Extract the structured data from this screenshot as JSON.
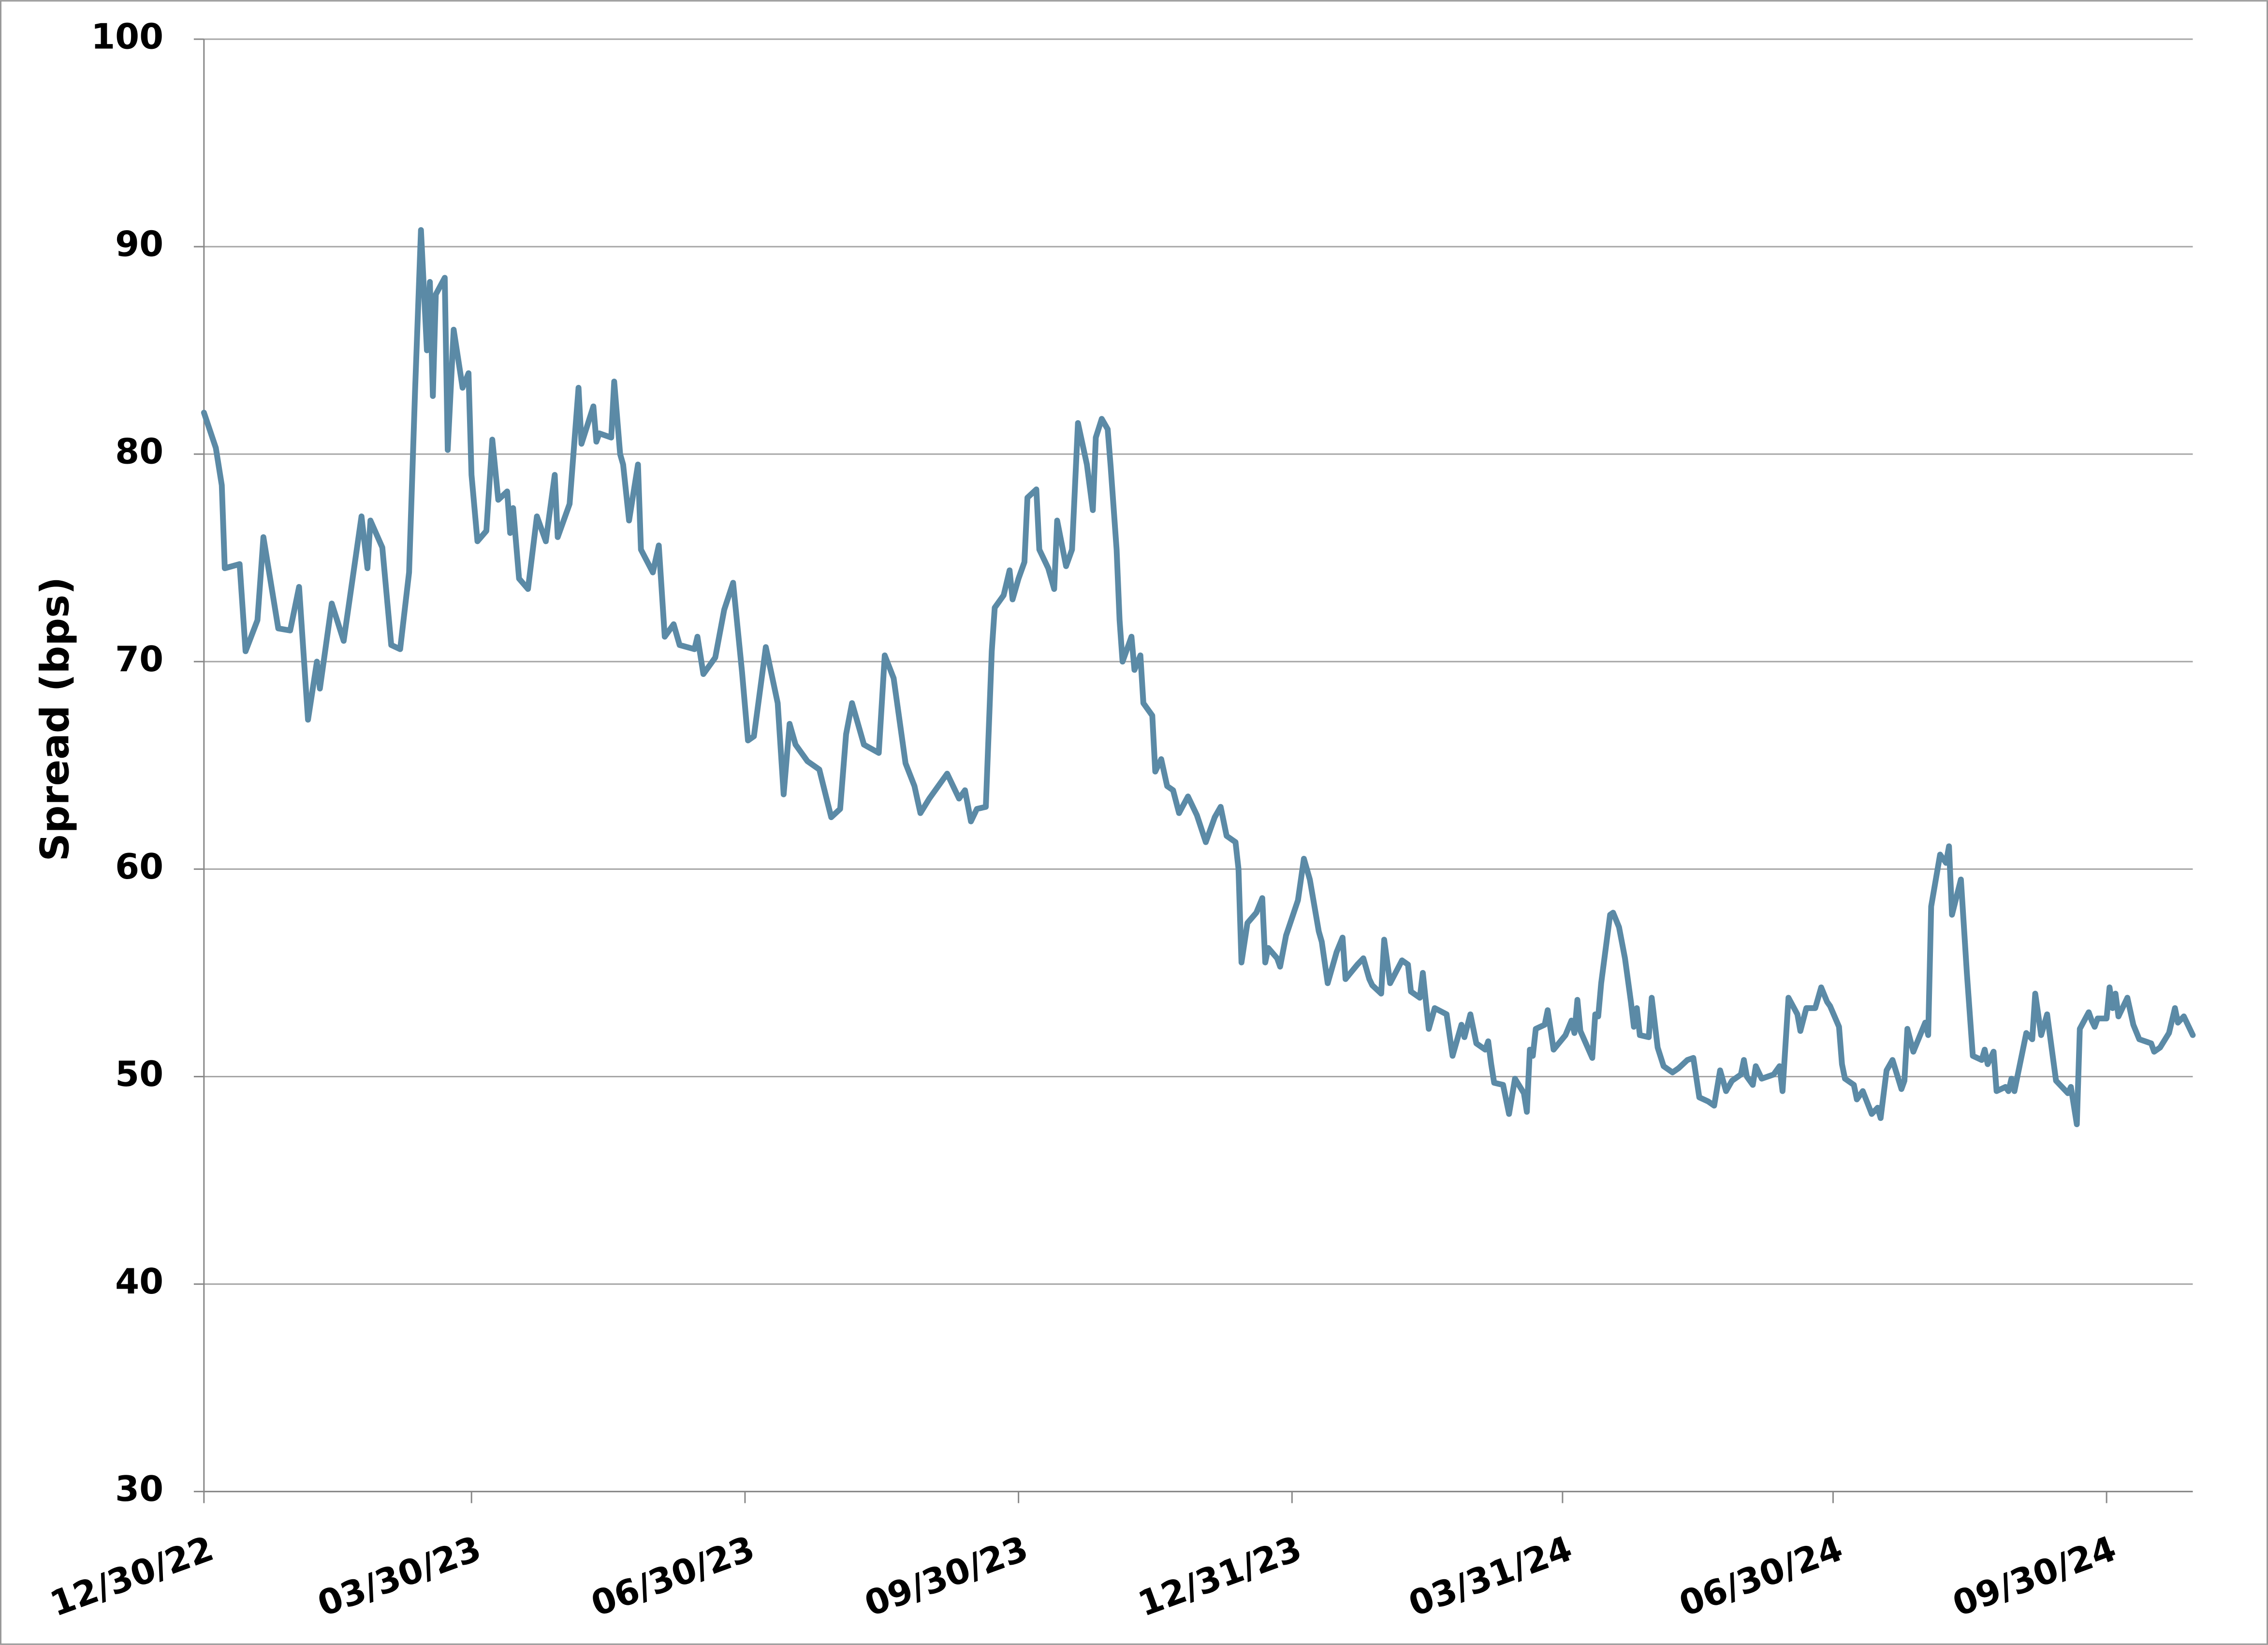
{
  "chart_data": {
    "type": "line",
    "y_label": "Spread (bps)",
    "ylim": [
      30,
      100
    ],
    "yticks": [
      30,
      40,
      50,
      60,
      70,
      80,
      90,
      100
    ],
    "xlim": [
      "2022-12-30",
      "2024-10-29"
    ],
    "xticks": [
      {
        "value": "2022-12-30",
        "label": "12/30/22"
      },
      {
        "value": "2023-03-30",
        "label": "03/30/23"
      },
      {
        "value": "2023-06-30",
        "label": "06/30/23"
      },
      {
        "value": "2023-09-30",
        "label": "09/30/23"
      },
      {
        "value": "2023-12-31",
        "label": "12/31/23"
      },
      {
        "value": "2024-03-31",
        "label": "03/31/24"
      },
      {
        "value": "2024-06-30",
        "label": "06/30/24"
      },
      {
        "value": "2024-09-30",
        "label": "09/30/24"
      }
    ],
    "grid": true,
    "x": [
      "2022-12-30",
      "2023-01-03",
      "2023-01-05",
      "2023-01-06",
      "2023-01-11",
      "2023-01-13",
      "2023-01-17",
      "2023-01-19",
      "2023-01-24",
      "2023-01-28",
      "2023-01-31",
      "2023-02-03",
      "2023-02-06",
      "2023-02-07",
      "2023-02-11",
      "2023-02-15",
      "2023-02-17",
      "2023-02-21",
      "2023-02-23",
      "2023-02-24",
      "2023-02-28",
      "2023-03-03",
      "2023-03-06",
      "2023-03-09",
      "2023-03-11",
      "2023-03-13",
      "2023-03-15",
      "2023-03-16",
      "2023-03-17",
      "2023-03-18",
      "2023-03-21",
      "2023-03-22",
      "2023-03-24",
      "2023-03-27",
      "2023-03-29",
      "2023-03-30",
      "2023-04-01",
      "2023-04-04",
      "2023-04-06",
      "2023-04-08",
      "2023-04-11",
      "2023-04-12",
      "2023-04-13",
      "2023-04-15",
      "2023-04-18",
      "2023-04-21",
      "2023-04-24",
      "2023-04-27",
      "2023-04-28",
      "2023-05-02",
      "2023-05-05",
      "2023-05-06",
      "2023-05-10",
      "2023-05-11",
      "2023-05-12",
      "2023-05-16",
      "2023-05-17",
      "2023-05-19",
      "2023-05-20",
      "2023-05-22",
      "2023-05-25",
      "2023-05-26",
      "2023-05-30",
      "2023-06-01",
      "2023-06-03",
      "2023-06-06",
      "2023-06-08",
      "2023-06-13",
      "2023-06-14",
      "2023-06-16",
      "2023-06-20",
      "2023-06-23",
      "2023-06-26",
      "2023-06-29",
      "2023-07-01",
      "2023-07-03",
      "2023-07-07",
      "2023-07-11",
      "2023-07-13",
      "2023-07-15",
      "2023-07-17",
      "2023-07-19",
      "2023-07-21",
      "2023-07-25",
      "2023-07-29",
      "2023-08-01",
      "2023-08-03",
      "2023-08-05",
      "2023-08-07",
      "2023-08-09",
      "2023-08-14",
      "2023-08-16",
      "2023-08-19",
      "2023-08-23",
      "2023-08-26",
      "2023-08-28",
      "2023-08-31",
      "2023-09-06",
      "2023-09-10",
      "2023-09-12",
      "2023-09-14",
      "2023-09-16",
      "2023-09-19",
      "2023-09-21",
      "2023-09-22",
      "2023-09-25",
      "2023-09-27",
      "2023-09-28",
      "2023-09-30",
      "2023-10-02",
      "2023-10-03",
      "2023-10-06",
      "2023-10-07",
      "2023-10-10",
      "2023-10-12",
      "2023-10-13",
      "2023-10-16",
      "2023-10-18",
      "2023-10-20",
      "2023-10-23",
      "2023-10-25",
      "2023-10-26",
      "2023-10-28",
      "2023-10-30",
      "2023-10-31",
      "2023-11-02",
      "2023-11-03",
      "2023-11-04",
      "2023-11-07",
      "2023-11-08",
      "2023-11-10",
      "2023-11-11",
      "2023-11-14",
      "2023-11-15",
      "2023-11-17",
      "2023-11-19",
      "2023-11-21",
      "2023-11-23",
      "2023-11-26",
      "2023-11-29",
      "2023-12-02",
      "2023-12-05",
      "2023-12-07",
      "2023-12-09",
      "2023-12-12",
      "2023-12-13",
      "2023-12-14",
      "2023-12-16",
      "2023-12-19",
      "2023-12-21",
      "2023-12-22",
      "2023-12-23",
      "2023-12-26",
      "2023-12-27",
      "2023-12-29",
      "2024-01-02",
      "2024-01-04",
      "2024-01-06",
      "2024-01-09",
      "2024-01-10",
      "2024-01-12",
      "2024-01-15",
      "2024-01-17",
      "2024-01-18",
      "2024-01-22",
      "2024-01-24",
      "2024-01-26",
      "2024-01-27",
      "2024-01-30",
      "2024-01-31",
      "2024-02-02",
      "2024-02-06",
      "2024-02-08",
      "2024-02-09",
      "2024-02-12",
      "2024-02-13",
      "2024-02-15",
      "2024-02-17",
      "2024-02-21",
      "2024-02-23",
      "2024-02-26",
      "2024-02-27",
      "2024-02-29",
      "2024-03-02",
      "2024-03-05",
      "2024-03-06",
      "2024-03-07",
      "2024-03-08",
      "2024-03-11",
      "2024-03-13",
      "2024-03-15",
      "2024-03-18",
      "2024-03-19",
      "2024-03-20",
      "2024-03-21",
      "2024-03-22",
      "2024-03-25",
      "2024-03-26",
      "2024-03-28",
      "2024-04-01",
      "2024-04-03",
      "2024-04-04",
      "2024-04-05",
      "2024-04-06",
      "2024-04-10",
      "2024-04-11",
      "2024-04-12",
      "2024-04-13",
      "2024-04-16",
      "2024-04-17",
      "2024-04-19",
      "2024-04-21",
      "2024-04-23",
      "2024-04-24",
      "2024-04-25",
      "2024-04-26",
      "2024-04-29",
      "2024-04-30",
      "2024-05-02",
      "2024-05-04",
      "2024-05-07",
      "2024-05-09",
      "2024-05-12",
      "2024-05-14",
      "2024-05-16",
      "2024-05-19",
      "2024-05-21",
      "2024-05-23",
      "2024-05-25",
      "2024-05-27",
      "2024-05-30",
      "2024-05-31",
      "2024-06-01",
      "2024-06-03",
      "2024-06-04",
      "2024-06-06",
      "2024-06-10",
      "2024-06-12",
      "2024-06-13",
      "2024-06-15",
      "2024-06-18",
      "2024-06-19",
      "2024-06-21",
      "2024-06-24",
      "2024-06-26",
      "2024-06-28",
      "2024-06-29",
      "2024-07-02",
      "2024-07-03",
      "2024-07-04",
      "2024-07-07",
      "2024-07-08",
      "2024-07-10",
      "2024-07-13",
      "2024-07-15",
      "2024-07-16",
      "2024-07-18",
      "2024-07-20",
      "2024-07-23",
      "2024-07-24",
      "2024-07-25",
      "2024-07-27",
      "2024-07-29",
      "2024-07-31",
      "2024-08-01",
      "2024-08-02",
      "2024-08-05",
      "2024-08-07",
      "2024-08-08",
      "2024-08-09",
      "2024-08-12",
      "2024-08-14",
      "2024-08-16",
      "2024-08-19",
      "2024-08-20",
      "2024-08-21",
      "2024-08-23",
      "2024-08-24",
      "2024-08-27",
      "2024-08-28",
      "2024-08-29",
      "2024-08-30",
      "2024-09-03",
      "2024-09-05",
      "2024-09-06",
      "2024-09-08",
      "2024-09-10",
      "2024-09-13",
      "2024-09-17",
      "2024-09-18",
      "2024-09-20",
      "2024-09-21",
      "2024-09-24",
      "2024-09-25",
      "2024-09-26",
      "2024-09-27",
      "2024-09-30",
      "2024-10-01",
      "2024-10-02",
      "2024-10-03",
      "2024-10-04",
      "2024-10-07",
      "2024-10-09",
      "2024-10-11",
      "2024-10-15",
      "2024-10-16",
      "2024-10-18",
      "2024-10-21",
      "2024-10-23",
      "2024-10-24",
      "2024-10-26",
      "2024-10-29"
    ],
    "series": [
      {
        "color": "#5b8aa6",
        "values": [
          82,
          80.3,
          78.5,
          74.5,
          74.7,
          70.5,
          72,
          76,
          71.6,
          71.5,
          73.6,
          67.2,
          70,
          68.7,
          72.8,
          71,
          73,
          77,
          74.5,
          76.8,
          75.5,
          70.8,
          70.6,
          74.3,
          83,
          90.8,
          85,
          88.3,
          82.8,
          87.7,
          88.5,
          80.2,
          86,
          83.2,
          83.9,
          79,
          75.8,
          76.3,
          80.7,
          77.8,
          78.2,
          76.2,
          77.4,
          74,
          73.5,
          77,
          75.8,
          79,
          76,
          77.6,
          83.2,
          80.5,
          82.3,
          80.6,
          81,
          80.8,
          83.5,
          80,
          79.5,
          76.8,
          79.5,
          75.4,
          74.3,
          75.6,
          71.2,
          71.8,
          70.8,
          70.6,
          71.2,
          69.4,
          70.2,
          72.5,
          73.8,
          69.5,
          66.2,
          66.4,
          70.7,
          68,
          63.6,
          67,
          66,
          65.6,
          65.2,
          64.8,
          62.5,
          62.9,
          66.5,
          68,
          67,
          66,
          65.6,
          70.3,
          69.2,
          65.1,
          64,
          62.7,
          63.4,
          64.6,
          63.4,
          63.8,
          62.3,
          62.9,
          63,
          70.5,
          72.6,
          73.2,
          74.4,
          73,
          74,
          74.8,
          77.9,
          78.3,
          75.4,
          74.5,
          73.5,
          76.8,
          74.6,
          75.4,
          81.5,
          79.5,
          77.3,
          80.8,
          81.7,
          81.2,
          79.4,
          75.4,
          72,
          70,
          71.2,
          69.6,
          70.3,
          68,
          67.4,
          64.7,
          65.3,
          64,
          63.8,
          62.7,
          63.5,
          62.6,
          61.3,
          62.5,
          63,
          61.6,
          61.3,
          60,
          55.5,
          57.4,
          57.9,
          58.6,
          55.5,
          56.2,
          55.7,
          55.3,
          56.8,
          58.5,
          60.5,
          59.5,
          57,
          56.5,
          54.5,
          56,
          56.7,
          54.7,
          55.4,
          55.7,
          54.7,
          54.4,
          54,
          56.6,
          54.5,
          55.6,
          55.4,
          54.1,
          53.8,
          55,
          52.3,
          53.3,
          53,
          51,
          52.5,
          51.9,
          53,
          51.6,
          51.3,
          51.7,
          50.6,
          49.7,
          49.6,
          48.2,
          49.9,
          49.2,
          48.3,
          51.3,
          51,
          52.3,
          52.5,
          53.2,
          51.3,
          52,
          52.7,
          52.1,
          53.7,
          52.2,
          50.9,
          53,
          52.9,
          54.5,
          57.8,
          57.9,
          57.2,
          55.7,
          53.6,
          52.4,
          53.3,
          52,
          51.9,
          53.8,
          51.4,
          50.5,
          50.2,
          50.4,
          50.8,
          50.9,
          49,
          48.8,
          48.6,
          50.3,
          49.3,
          49.8,
          50.1,
          50.8,
          50,
          49.6,
          50.5,
          49.9,
          50.1,
          50.5,
          49.3,
          53.8,
          53,
          52.2,
          53.3,
          53.3,
          54.3,
          53.6,
          53.4,
          52.4,
          50.6,
          49.9,
          49.6,
          48.9,
          49.3,
          48.2,
          48.5,
          48,
          50.3,
          50.8,
          49.4,
          49.8,
          52.3,
          51.2,
          51.9,
          52.6,
          52,
          58.2,
          60.7,
          60.3,
          61.1,
          57.8,
          59.5,
          55,
          51,
          50.8,
          51.3,
          50.6,
          51.2,
          49.3,
          49.5,
          49.3,
          49.9,
          49.3,
          52.1,
          51.8,
          54,
          52,
          53,
          49.8,
          49.2,
          49.5,
          47.7,
          52.3,
          53.1,
          52.7,
          52.4,
          52.8,
          52.8,
          54.3,
          53.3,
          54,
          52.9,
          53.8,
          52.5,
          51.8,
          51.6,
          51.2,
          51.4,
          52.1,
          53.3,
          52.6,
          52.9,
          52
        ]
      }
    ]
  }
}
